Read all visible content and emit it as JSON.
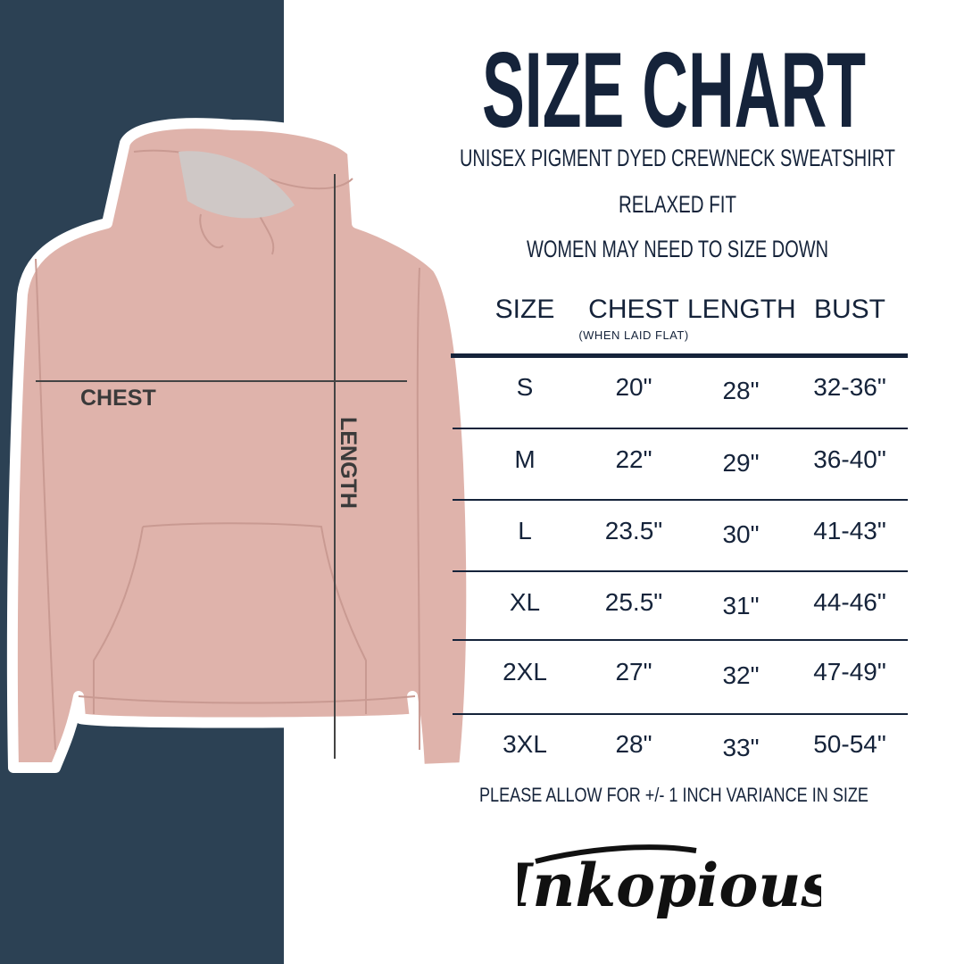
{
  "title": "SIZE CHART",
  "subtitle": "UNISEX PIGMENT DYED CREWNECK SWEATSHIRT",
  "fit": "RELAXED FIT",
  "advice": "WOMEN MAY NEED TO SIZE DOWN",
  "colors": {
    "panel": "#2c4154",
    "text": "#15233a",
    "garment": "#dfb3ab"
  },
  "garment_labels": {
    "chest": "CHEST",
    "length": "LENGTH"
  },
  "table": {
    "headers": [
      "SIZE",
      "CHEST",
      "LENGTH",
      "BUST"
    ],
    "chest_note": "(WHEN LAID FLAT)",
    "rows": [
      [
        "S",
        "20\"",
        "28\"",
        "32-36\""
      ],
      [
        "M",
        "22\"",
        "29\"",
        "36-40\""
      ],
      [
        "L",
        "23.5\"",
        "30\"",
        "41-43\""
      ],
      [
        "XL",
        "25.5\"",
        "31\"",
        "44-46\""
      ],
      [
        "2XL",
        "27\"",
        "32\"",
        "47-49\""
      ],
      [
        "3XL",
        "28\"",
        "33\"",
        "50-54\""
      ]
    ]
  },
  "footnote": "PLEASE ALLOW FOR +/- 1 INCH VARIANCE IN SIZE",
  "brand": "Inkopious"
}
